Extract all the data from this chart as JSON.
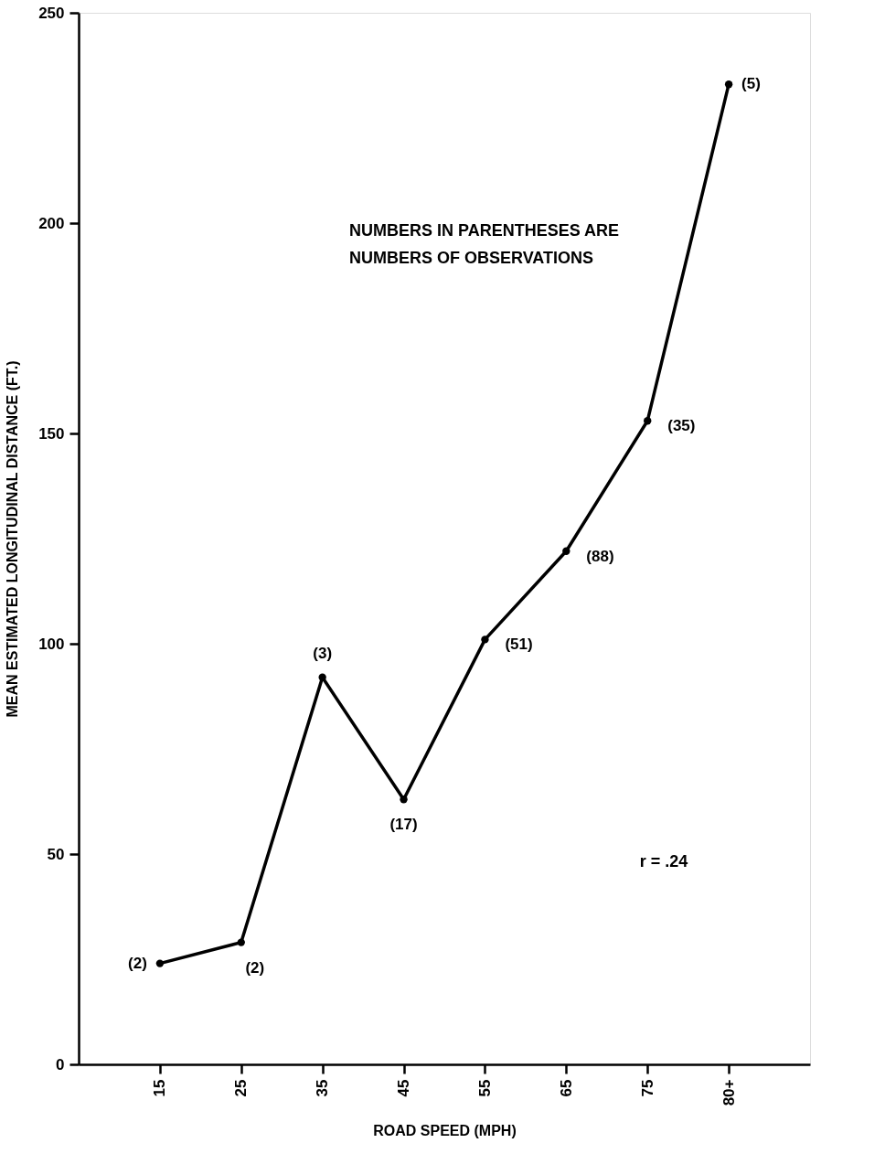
{
  "chart_data": {
    "type": "line",
    "xlabel": "ROAD SPEED (MPH)",
    "ylabel": "MEAN ESTIMATED LONGITUDINAL DISTANCE (FT.)",
    "categories": [
      "15",
      "25",
      "35",
      "45",
      "55",
      "65",
      "75",
      "80+"
    ],
    "series": [
      {
        "color": "#000000",
        "values": [
          24,
          29,
          92,
          63,
          101,
          122,
          153,
          233
        ]
      }
    ],
    "ylim": [
      0,
      250
    ],
    "yticks": [
      0,
      50,
      100,
      150,
      200,
      250
    ],
    "grid": false,
    "marker": "circle",
    "line_style": "solid",
    "annotations": [
      {
        "text": "(2)",
        "x": "15",
        "y": 24
      },
      {
        "text": "(2)",
        "x": "25",
        "y": 29
      },
      {
        "text": "(3)",
        "x": "35",
        "y": 92
      },
      {
        "text": "(17)",
        "x": "45",
        "y": 63
      },
      {
        "text": "(51)",
        "x": "55",
        "y": 101
      },
      {
        "text": "(88)",
        "x": "65",
        "y": 122
      },
      {
        "text": "(35)",
        "x": "75",
        "y": 153
      },
      {
        "text": "(5)",
        "x": "80+",
        "y": 233
      },
      "NUMBERS IN PARENTHESES ARE\nNUMBERS OF OBSERVATIONS",
      "r = .24"
    ]
  }
}
